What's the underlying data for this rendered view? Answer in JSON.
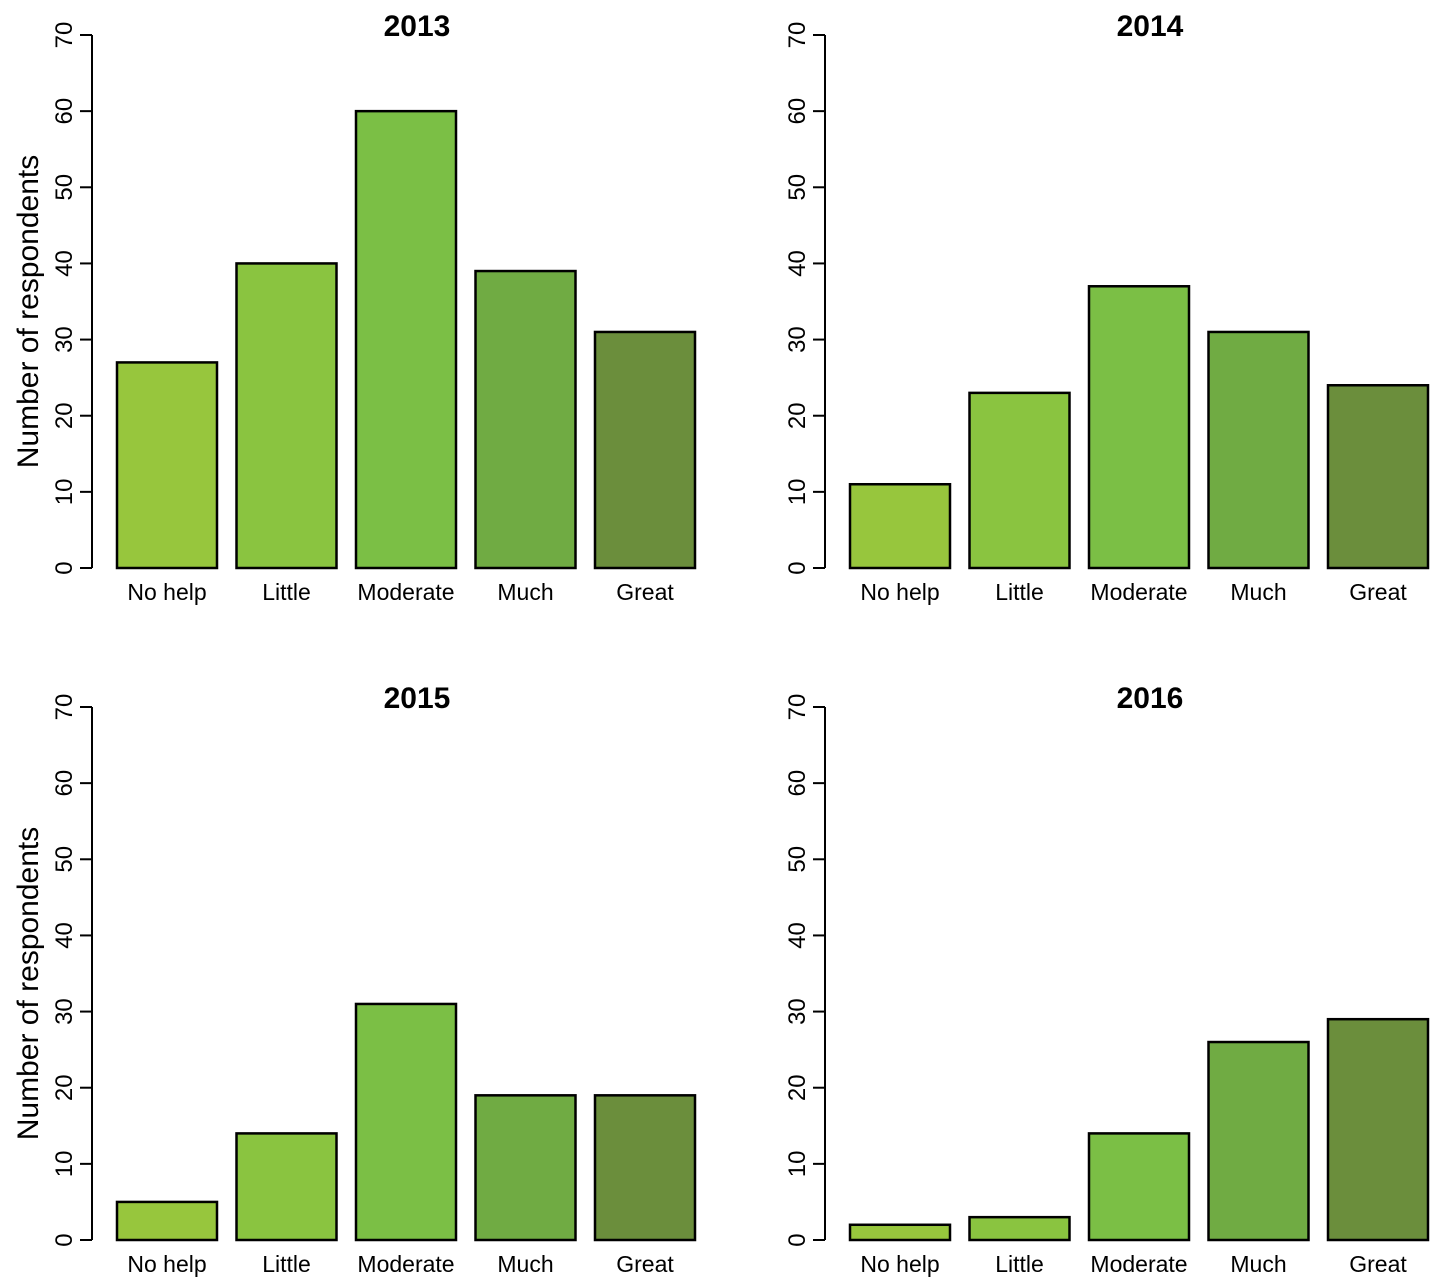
{
  "chart_data": [
    {
      "type": "bar",
      "title": "2013",
      "ylabel": "Number of respondents",
      "categories": [
        "No help",
        "Little",
        "Moderate",
        "Much",
        "Great"
      ],
      "values": [
        27,
        40,
        60,
        39,
        31
      ],
      "ylim": [
        0,
        70
      ],
      "yticks": [
        0,
        10,
        20,
        30,
        40,
        50,
        60,
        70
      ],
      "colors": [
        "#97c63d",
        "#8ac440",
        "#7bbf45",
        "#70ab43",
        "#6b8e3c"
      ],
      "grid": false
    },
    {
      "type": "bar",
      "title": "2014",
      "ylabel": "",
      "categories": [
        "No help",
        "Little",
        "Moderate",
        "Much",
        "Great"
      ],
      "values": [
        11,
        23,
        37,
        31,
        24
      ],
      "ylim": [
        0,
        70
      ],
      "yticks": [
        0,
        10,
        20,
        30,
        40,
        50,
        60,
        70
      ],
      "colors": [
        "#97c63d",
        "#8ac440",
        "#7bbf45",
        "#70ab43",
        "#6b8e3c"
      ],
      "grid": false
    },
    {
      "type": "bar",
      "title": "2015",
      "ylabel": "Number of respondents",
      "categories": [
        "No help",
        "Little",
        "Moderate",
        "Much",
        "Great"
      ],
      "values": [
        5,
        14,
        31,
        19,
        19
      ],
      "ylim": [
        0,
        70
      ],
      "yticks": [
        0,
        10,
        20,
        30,
        40,
        50,
        60,
        70
      ],
      "colors": [
        "#97c63d",
        "#8ac440",
        "#7bbf45",
        "#70ab43",
        "#6b8e3c"
      ],
      "grid": false
    },
    {
      "type": "bar",
      "title": "2016",
      "ylabel": "",
      "categories": [
        "No help",
        "Little",
        "Moderate",
        "Much",
        "Great"
      ],
      "values": [
        2,
        3,
        14,
        26,
        29
      ],
      "ylim": [
        0,
        70
      ],
      "yticks": [
        0,
        10,
        20,
        30,
        40,
        50,
        60,
        70
      ],
      "colors": [
        "#97c63d",
        "#8ac440",
        "#7bbf45",
        "#70ab43",
        "#6b8e3c"
      ],
      "grid": false
    }
  ]
}
